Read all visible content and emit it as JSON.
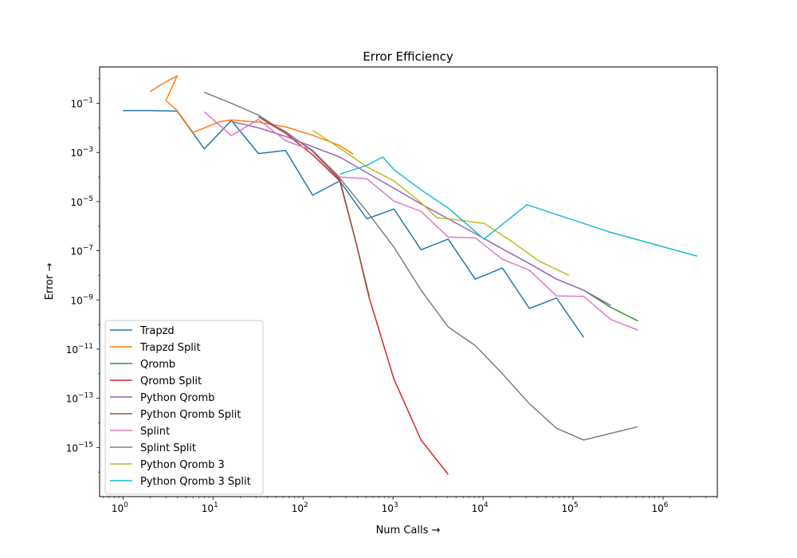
{
  "chart_data": {
    "type": "line",
    "title": "Error Efficiency",
    "xlabel": "Num Calls",
    "ylabel": "Error",
    "xscale": "log",
    "yscale": "log",
    "xlim": [
      0.55,
      4000000
    ],
    "ylim": [
      1e-17,
      3
    ],
    "grid": false,
    "legend_position": "lower-left",
    "x_ticks": [
      {
        "base": "10",
        "exp": "0",
        "value": 1
      },
      {
        "base": "10",
        "exp": "1",
        "value": 10
      },
      {
        "base": "10",
        "exp": "2",
        "value": 100
      },
      {
        "base": "10",
        "exp": "3",
        "value": 1000
      },
      {
        "base": "10",
        "exp": "4",
        "value": 10000
      },
      {
        "base": "10",
        "exp": "5",
        "value": 100000
      },
      {
        "base": "10",
        "exp": "6",
        "value": 1000000
      }
    ],
    "y_ticks": [
      {
        "base": "10",
        "exp": "−1",
        "value": 0.1
      },
      {
        "base": "10",
        "exp": "−3",
        "value": 0.001
      },
      {
        "base": "10",
        "exp": "−5",
        "value": 1e-05
      },
      {
        "base": "10",
        "exp": "−7",
        "value": 1e-07
      },
      {
        "base": "10",
        "exp": "−9",
        "value": 1e-09
      },
      {
        "base": "10",
        "exp": "−11",
        "value": 1e-11
      },
      {
        "base": "10",
        "exp": "−13",
        "value": 1e-13
      },
      {
        "base": "10",
        "exp": "−15",
        "value": 1e-15
      }
    ],
    "series": [
      {
        "name": "Trapzd",
        "color": "#1f77b4",
        "points": [
          [
            1,
            0.05
          ],
          [
            2,
            0.05
          ],
          [
            4,
            0.048
          ],
          [
            8,
            0.0014
          ],
          [
            16,
            0.02
          ],
          [
            32,
            0.0009
          ],
          [
            64,
            0.0012
          ],
          [
            128,
            1.8e-05
          ],
          [
            256,
            7e-05
          ],
          [
            512,
            2e-06
          ],
          [
            1024,
            5e-06
          ],
          [
            2048,
            1.1e-07
          ],
          [
            4096,
            3e-07
          ],
          [
            8192,
            7e-09
          ],
          [
            16384,
            2e-08
          ],
          [
            32768,
            4.5e-10
          ],
          [
            65536,
            1.2e-09
          ],
          [
            131072,
            3e-11
          ]
        ]
      },
      {
        "name": "Trapzd Split",
        "color": "#ff7f0e",
        "points": [
          [
            2,
            0.3
          ],
          [
            3,
            0.75
          ],
          [
            4,
            1.3
          ],
          [
            3,
            0.13
          ],
          [
            4,
            0.05
          ],
          [
            6,
            0.0065
          ],
          [
            12,
            0.018
          ],
          [
            16,
            0.021
          ],
          [
            32,
            0.017
          ],
          [
            64,
            0.011
          ],
          [
            128,
            0.005
          ],
          [
            256,
            0.0019
          ],
          [
            360,
            0.00085
          ]
        ]
      },
      {
        "name": "Qromb",
        "color": "#2ca02c",
        "points": [
          [
            131072,
            2.5e-09
          ],
          [
            262144,
            5e-10
          ],
          [
            524288,
            1.4e-10
          ]
        ]
      },
      {
        "name": "Qromb Split",
        "color": "#d62728",
        "points": [
          [
            32,
            0.028
          ],
          [
            64,
            0.006
          ],
          [
            128,
            0.0008
          ],
          [
            256,
            7e-05
          ],
          [
            384,
            2.5e-07
          ],
          [
            512,
            3e-09
          ],
          [
            544,
            1.2e-09
          ],
          [
            1024,
            6e-13
          ],
          [
            2048,
            2e-15
          ],
          [
            4096,
            8e-17
          ]
        ]
      },
      {
        "name": "Python Qromb",
        "color": "#9467bd",
        "points": [
          [
            16,
            0.018
          ],
          [
            32,
            0.01
          ],
          [
            64,
            0.0045
          ],
          [
            128,
            0.0017
          ],
          [
            256,
            0.00065
          ],
          [
            512,
            0.00015
          ],
          [
            1024,
            3.5e-05
          ],
          [
            2048,
            8e-06
          ],
          [
            4096,
            2e-06
          ],
          [
            8192,
            5e-07
          ],
          [
            16384,
            1.2e-07
          ],
          [
            32768,
            3e-08
          ],
          [
            65536,
            7e-09
          ],
          [
            131072,
            2.5e-09
          ],
          [
            262144,
            6e-10
          ]
        ]
      },
      {
        "name": "Python Qromb Split",
        "color": "#8c564b",
        "points": [
          [
            32,
            0.028
          ],
          [
            64,
            0.007
          ],
          [
            128,
            0.0011
          ],
          [
            256,
            8e-05
          ],
          [
            384,
            2.5e-07
          ],
          [
            512,
            3.5e-09
          ],
          [
            544,
            1.4e-09
          ]
        ]
      },
      {
        "name": "Splint",
        "color": "#e377c2",
        "points": [
          [
            8,
            0.045
          ],
          [
            16,
            0.0048
          ],
          [
            32,
            0.022
          ],
          [
            64,
            0.003
          ],
          [
            128,
            0.0012
          ],
          [
            256,
            0.0001
          ],
          [
            512,
            8.5e-05
          ],
          [
            1024,
            1.05e-05
          ],
          [
            2048,
            4e-06
          ],
          [
            4096,
            3.6e-07
          ],
          [
            8192,
            3.4e-07
          ],
          [
            16384,
            4.5e-08
          ],
          [
            32768,
            1.6e-08
          ],
          [
            65536,
            1.45e-09
          ],
          [
            131072,
            1.4e-09
          ],
          [
            262144,
            1.6e-10
          ],
          [
            524288,
            6e-11
          ]
        ]
      },
      {
        "name": "Splint Split",
        "color": "#7f7f7f",
        "points": [
          [
            8,
            0.28
          ],
          [
            16,
            0.1
          ],
          [
            32,
            0.033
          ],
          [
            64,
            0.0065
          ],
          [
            128,
            0.0012
          ],
          [
            256,
            9e-05
          ],
          [
            512,
            4e-06
          ],
          [
            1024,
            1.4e-07
          ],
          [
            2048,
            2.5e-09
          ],
          [
            4096,
            8e-11
          ],
          [
            8192,
            1.4e-11
          ],
          [
            16384,
            1e-12
          ],
          [
            32768,
            6e-14
          ],
          [
            65536,
            6e-15
          ],
          [
            131072,
            2e-15
          ],
          [
            524288,
            7e-15
          ]
        ]
      },
      {
        "name": "Python Qromb 3",
        "color": "#bcbd22",
        "points": [
          [
            128,
            0.008
          ],
          [
            256,
            0.0015
          ],
          [
            512,
            0.00026
          ],
          [
            1024,
            7e-05
          ],
          [
            2048,
            9e-06
          ],
          [
            3072,
            2.2e-06
          ],
          [
            4096,
            2e-06
          ],
          [
            10240,
            1.3e-06
          ],
          [
            20480,
            2.5e-07
          ],
          [
            40960,
            4e-08
          ],
          [
            90000,
            1e-08
          ]
        ]
      },
      {
        "name": "Python Qromb 3 Split",
        "color": "#17becf",
        "points": [
          [
            256,
            0.00013
          ],
          [
            512,
            0.0003
          ],
          [
            768,
            0.00065
          ],
          [
            1024,
            0.0002
          ],
          [
            2048,
            3e-05
          ],
          [
            4096,
            5.5e-06
          ],
          [
            10240,
            3e-07
          ],
          [
            30720,
            7.5e-06
          ],
          [
            245760,
            6e-07
          ],
          [
            2400000,
            6e-08
          ]
        ]
      }
    ]
  }
}
